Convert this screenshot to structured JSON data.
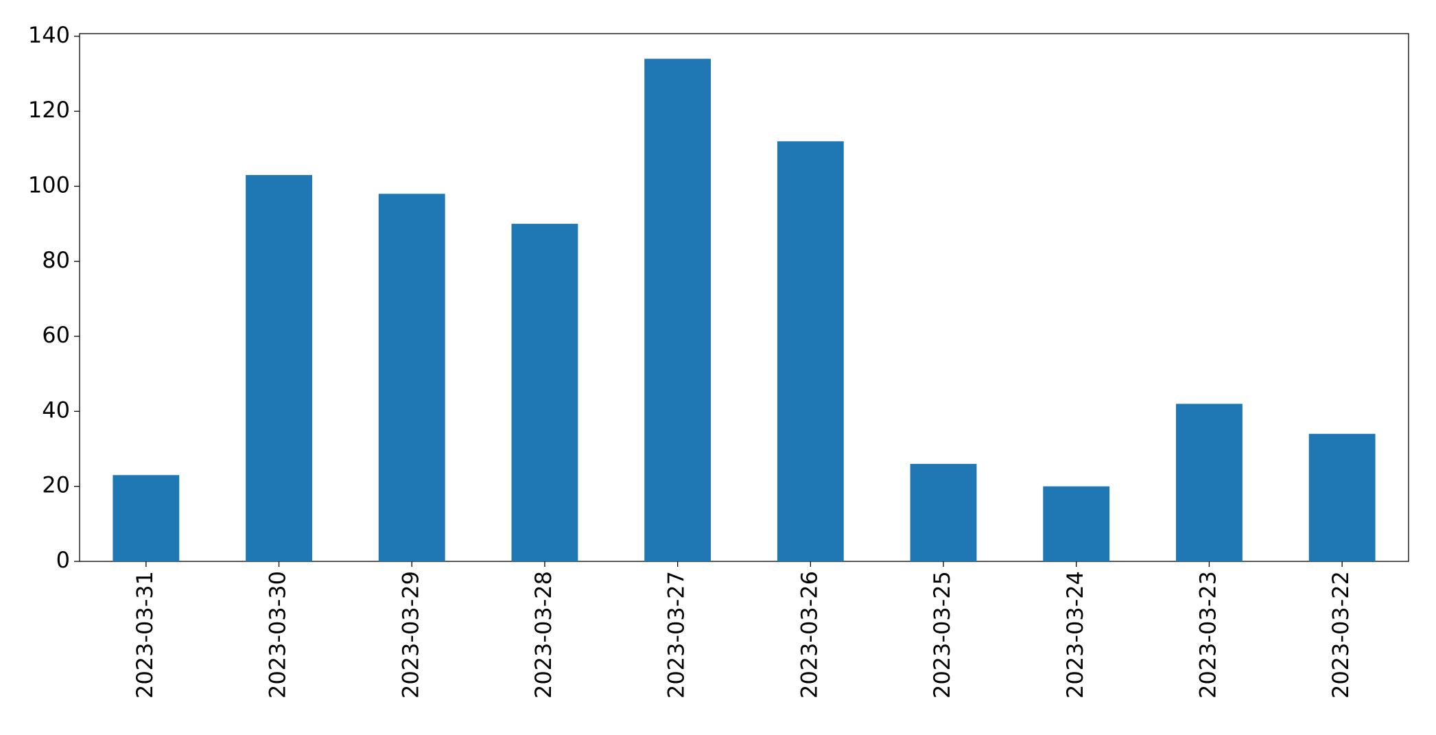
{
  "chart_data": {
    "type": "bar",
    "categories": [
      "2023-03-31",
      "2023-03-30",
      "2023-03-29",
      "2023-03-28",
      "2023-03-27",
      "2023-03-26",
      "2023-03-25",
      "2023-03-24",
      "2023-03-23",
      "2023-03-22"
    ],
    "values": [
      23,
      103,
      98,
      90,
      134,
      112,
      26,
      20,
      42,
      34
    ],
    "color": "#1f77b4",
    "ylim": [
      0,
      140.7
    ],
    "yticks": [
      0,
      20,
      40,
      60,
      80,
      100,
      120,
      140
    ],
    "grid": false
  }
}
